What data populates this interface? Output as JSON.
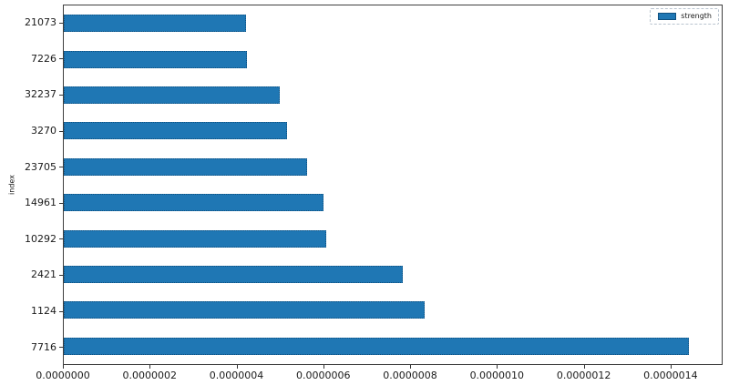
{
  "chart_data": {
    "type": "bar",
    "orientation": "horizontal",
    "title": "",
    "xlabel": "",
    "ylabel": "index",
    "categories": [
      "21073",
      "7226",
      "32237",
      "3270",
      "23705",
      "14961",
      "10292",
      "2421",
      "1124",
      "7716"
    ],
    "series": [
      {
        "name": "strength",
        "values": [
          4.2e-07,
          4.23e-07,
          4.98e-07,
          5.15e-07,
          5.62e-07,
          6e-07,
          6.06e-07,
          7.84e-07,
          8.34e-07,
          1.444e-06
        ]
      }
    ],
    "xlim": [
      0,
      1.52e-06
    ],
    "xticks": [
      0,
      2e-07,
      4e-07,
      6e-07,
      8e-07,
      1e-06,
      1.2e-06,
      1.4e-06
    ],
    "xtick_labels": [
      "0.0000000",
      "0.0000002",
      "0.0000004",
      "0.0000006",
      "0.0000008",
      "0.0000010",
      "0.0000012",
      "0.0000014"
    ],
    "grid": false,
    "legend": {
      "position": "upper right",
      "entries": [
        {
          "label": "strength",
          "color": "#1f77b4"
        }
      ]
    },
    "bar_color": "#1f77b4",
    "bar_edge_color": "#10507f"
  },
  "colors": {
    "background": "#ffffff",
    "spine": "#3f3f3f",
    "tick_text": "#1a1a1a",
    "bar_fill": "#1f77b4",
    "bar_edge": "#10507f",
    "legend_border": "#b9c4cf"
  }
}
